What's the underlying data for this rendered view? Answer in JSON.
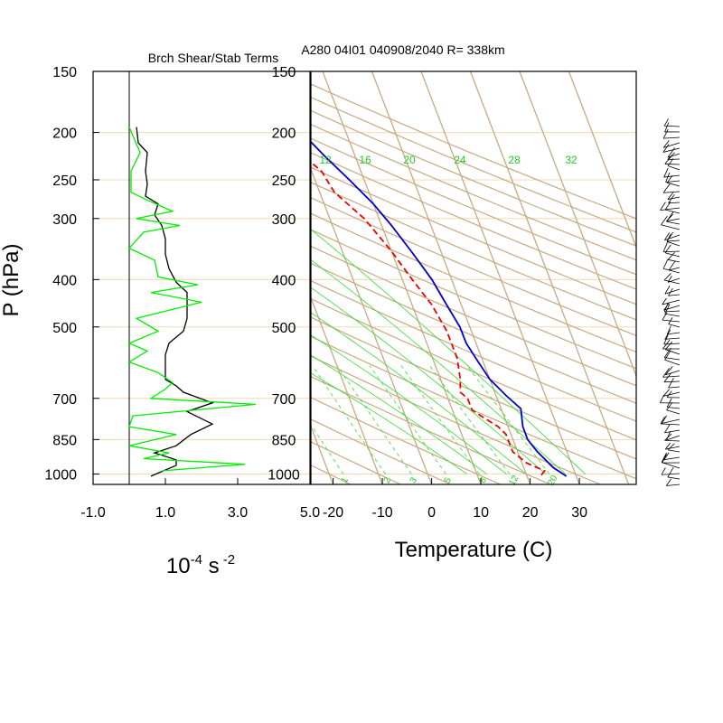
{
  "titles": {
    "left_panel": "Brch Shear/Stab Terms",
    "right_panel": "A280 04I01 040908/2040 R= 338km"
  },
  "colors": {
    "temperature": "#0000cc",
    "dewpoint": "#ee0000",
    "shear_term": "#000000",
    "stability_term": "#00ee00",
    "skewt_grid": "#c8a982",
    "mixing_ratio": "#33dd33",
    "pressure_lines": "#f0d8b8"
  },
  "chart_data": [
    {
      "type": "line",
      "panel": "left",
      "title": "Brch Shear/Stab Terms",
      "ylabel": "P (hPa)",
      "xlabel": "10^-4 s^-2",
      "y_scale": "log",
      "ylim": [
        1050,
        150
      ],
      "xlim": [
        -1.0,
        5.0
      ],
      "x_ticks": [
        "-1.0",
        "1.0",
        "3.0",
        "5.0"
      ],
      "y_ticks": [
        "150",
        "200",
        "250",
        "300",
        "400",
        "500",
        "700",
        "850",
        "1000"
      ],
      "series": [
        {
          "role": "shear_term",
          "color": "#000000",
          "points": [
            [
              0.2,
              195
            ],
            [
              0.25,
              210
            ],
            [
              0.5,
              220
            ],
            [
              0.45,
              240
            ],
            [
              0.5,
              255
            ],
            [
              0.45,
              270
            ],
            [
              0.8,
              280
            ],
            [
              0.7,
              295
            ],
            [
              0.9,
              310
            ],
            [
              1.0,
              330
            ],
            [
              1.0,
              355
            ],
            [
              1.1,
              380
            ],
            [
              1.3,
              405
            ],
            [
              1.6,
              425
            ],
            [
              1.6,
              450
            ],
            [
              1.6,
              480
            ],
            [
              1.5,
              510
            ],
            [
              1.1,
              540
            ],
            [
              1.0,
              570
            ],
            [
              1.0,
              600
            ],
            [
              1.0,
              640
            ],
            [
              1.3,
              660
            ],
            [
              1.5,
              680
            ],
            [
              2.3,
              715
            ],
            [
              1.6,
              745
            ],
            [
              2.3,
              790
            ],
            [
              1.7,
              830
            ],
            [
              1.3,
              875
            ],
            [
              0.7,
              905
            ],
            [
              1.3,
              935
            ],
            [
              1.3,
              960
            ],
            [
              0.6,
              1010
            ]
          ]
        },
        {
          "role": "stability_term",
          "color": "#00ee00",
          "points": [
            [
              0.0,
              195
            ],
            [
              0.3,
              220
            ],
            [
              0.05,
              240
            ],
            [
              0.05,
              265
            ],
            [
              0.5,
              275
            ],
            [
              1.2,
              290
            ],
            [
              0.2,
              300
            ],
            [
              1.4,
              310
            ],
            [
              0.4,
              320
            ],
            [
              0.0,
              345
            ],
            [
              0.7,
              365
            ],
            [
              0.8,
              395
            ],
            [
              1.9,
              410
            ],
            [
              0.6,
              425
            ],
            [
              2.0,
              445
            ],
            [
              0.2,
              480
            ],
            [
              0.8,
              510
            ],
            [
              0.0,
              540
            ],
            [
              0.5,
              560
            ],
            [
              0.0,
              590
            ],
            [
              0.8,
              620
            ],
            [
              1.2,
              650
            ],
            [
              1.0,
              670
            ],
            [
              0.6,
              700
            ],
            [
              3.5,
              720
            ],
            [
              0.1,
              760
            ],
            [
              0.0,
              800
            ],
            [
              1.3,
              830
            ],
            [
              0.0,
              875
            ],
            [
              1.1,
              905
            ],
            [
              0.4,
              930
            ],
            [
              3.2,
              955
            ],
            [
              0.9,
              985
            ]
          ]
        }
      ]
    },
    {
      "type": "line",
      "panel": "right",
      "title": "A280 04I01 040908/2040 R= 338km",
      "xlabel": "Temperature (C)",
      "y_scale": "log",
      "ylim": [
        1050,
        150
      ],
      "xlim": [
        -25,
        40
      ],
      "x_ticks": [
        "-20",
        "-10",
        "0",
        "10",
        "20",
        "30"
      ],
      "y_ticks": [
        "150",
        "200",
        "250",
        "300",
        "400",
        "500",
        "700",
        "850",
        "1000"
      ],
      "mixing_ratio_labels_top": [
        "12",
        "16",
        "20",
        "24",
        "28",
        "32"
      ],
      "mixing_ratio_labels_bottom": [
        "1",
        "2",
        "3",
        "5",
        "8",
        "12",
        "20"
      ],
      "series": [
        {
          "name": "",
          "role": "temperature",
          "color": "#0000cc",
          "style": "solid",
          "points": [
            [
              28,
              1010
            ],
            [
              26,
              970
            ],
            [
              24,
              900
            ],
            [
              23,
              850
            ],
            [
              23,
              800
            ],
            [
              24,
              735
            ],
            [
              22,
              690
            ],
            [
              20,
              640
            ],
            [
              19,
              590
            ],
            [
              18,
              540
            ],
            [
              18,
              500
            ],
            [
              17,
              450
            ],
            [
              16,
              400
            ],
            [
              14,
              350
            ],
            [
              12,
              310
            ],
            [
              10,
              280
            ],
            [
              7,
              250
            ],
            [
              4,
              225
            ],
            [
              1,
              200
            ],
            [
              -2,
              180
            ]
          ]
        },
        {
          "name": "",
          "role": "dewpoint",
          "color": "#ee0000",
          "style": "dashed",
          "points": [
            [
              23,
              1005
            ],
            [
              24,
              985
            ],
            [
              21,
              950
            ],
            [
              19,
              900
            ],
            [
              19,
              860
            ],
            [
              19,
              830
            ],
            [
              18,
              800
            ],
            [
              16,
              770
            ],
            [
              14,
              740
            ],
            [
              14,
              700
            ],
            [
              13,
              680
            ],
            [
              14,
              640
            ],
            [
              15,
              580
            ],
            [
              15,
              510
            ],
            [
              14,
              450
            ],
            [
              12,
              400
            ],
            [
              10,
              350
            ],
            [
              7,
              300
            ],
            [
              3,
              265
            ],
            [
              2,
              240
            ],
            [
              -1,
              220
            ],
            [
              -3,
              210
            ]
          ]
        }
      ]
    }
  ]
}
